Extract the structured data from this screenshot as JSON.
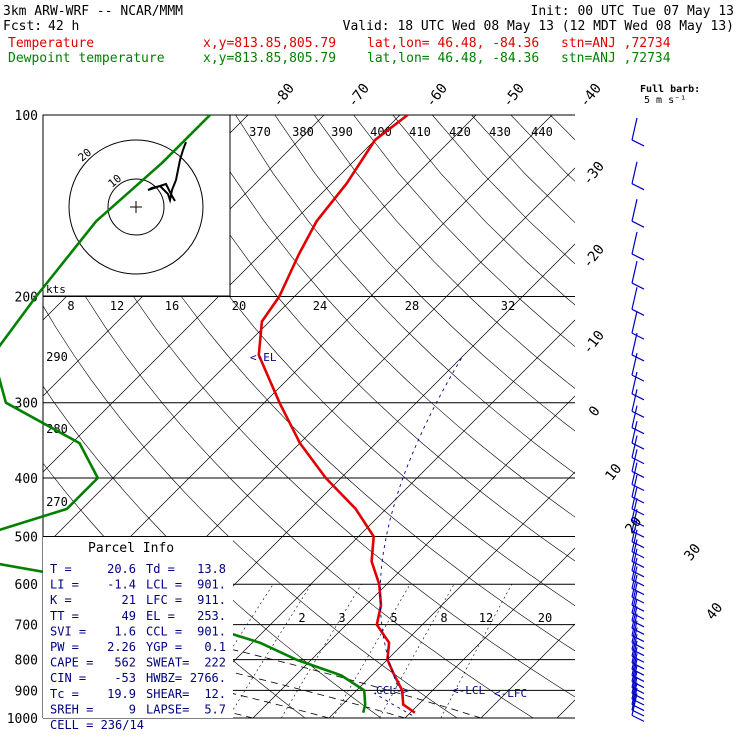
{
  "header": {
    "model": "3km ARW-WRF -- NCAR/MMM",
    "init": "Init: 00 UTC Tue 07 May 13",
    "fcst_label": "Fcst:",
    "fcst_value": "42 h",
    "valid": "Valid: 18 UTC Wed 08 May 13 (12 MDT Wed 08 May 13)",
    "temp_label": "Temperature",
    "dew_label": "Dewpoint temperature",
    "xy": "x,y=813.85,805.79",
    "latlon": "lat,lon= 46.48, -84.36",
    "stn": "stn=ANJ ,72734"
  },
  "colors": {
    "temperature": "#e00000",
    "dewpoint": "#008000",
    "parcel": "#000080",
    "barb": "#0000c0"
  },
  "barb_legend": {
    "line1": "Full barb:",
    "line2": "5 m s⁻¹"
  },
  "hodograph": {
    "units": "kts",
    "ring_labels": [
      "10",
      "20"
    ]
  },
  "chart_data": {
    "type": "line",
    "title": "",
    "ylabel_pressure_levels": [
      100,
      200,
      300,
      400,
      500,
      600,
      700,
      800,
      900,
      1000
    ],
    "isotherm_labels": [
      "-80",
      "-70",
      "-60",
      "-50",
      "-40",
      "-30",
      "-20",
      "-10",
      "0",
      "10",
      "20",
      "30",
      "40"
    ],
    "theta_e_labels": [
      "370",
      "380",
      "390",
      "400",
      "410",
      "420",
      "430",
      "440"
    ],
    "mixing_ratio_labels": [
      "8",
      "12",
      "16",
      "20",
      "24",
      "28",
      "32"
    ],
    "lower_mixing_ratio_labels": [
      "2",
      "3",
      "5",
      "8",
      "12",
      "20"
    ],
    "dry_adiabat_labels": [
      "290",
      "280",
      "270"
    ],
    "series": [
      {
        "name": "Temperature",
        "points": [
          [
            100,
            -59
          ],
          [
            110,
            -60
          ],
          [
            130,
            -58
          ],
          [
            150,
            -57
          ],
          [
            170,
            -55
          ],
          [
            200,
            -52
          ],
          [
            220,
            -51
          ],
          [
            250,
            -47
          ],
          [
            300,
            -38
          ],
          [
            350,
            -30
          ],
          [
            400,
            -22
          ],
          [
            450,
            -14
          ],
          [
            500,
            -8
          ],
          [
            550,
            -5
          ],
          [
            600,
            -1
          ],
          [
            650,
            2
          ],
          [
            700,
            4
          ],
          [
            750,
            8
          ],
          [
            800,
            10
          ],
          [
            850,
            13
          ],
          [
            900,
            16
          ],
          [
            950,
            18
          ],
          [
            980,
            20.6
          ]
        ]
      },
      {
        "name": "Dewpoint temperature",
        "points": [
          [
            100,
            -85
          ],
          [
            120,
            -85
          ],
          [
            150,
            -86
          ],
          [
            200,
            -84
          ],
          [
            250,
            -82
          ],
          [
            300,
            -74
          ],
          [
            350,
            -59
          ],
          [
            400,
            -52
          ],
          [
            450,
            -52
          ],
          [
            500,
            -60
          ],
          [
            550,
            -56
          ],
          [
            600,
            -36
          ],
          [
            650,
            -28
          ],
          [
            700,
            -19
          ],
          [
            750,
            -9
          ],
          [
            800,
            -2
          ],
          [
            850,
            6
          ],
          [
            900,
            11
          ],
          [
            950,
            13
          ],
          [
            980,
            13.8
          ]
        ]
      }
    ],
    "annotations": [
      "<-EL",
      "CCL->",
      "<-LCL",
      "<-LFC"
    ],
    "parcel_info": {
      "title": "Parcel Info",
      "rows": [
        [
          "T  =",
          "20.6",
          "Td =",
          "13.8"
        ],
        [
          "LI =",
          "-1.4",
          "LCL =",
          "901."
        ],
        [
          "K  =",
          "21",
          "LFC =",
          "911."
        ],
        [
          "TT =",
          "49",
          "EL =",
          "253."
        ],
        [
          "SVI =",
          "1.6",
          "CCL =",
          "901."
        ],
        [
          "PW =",
          "2.26",
          "YGP =",
          "0.1"
        ],
        [
          "CAPE =",
          "562",
          "SWEAT=",
          "222"
        ],
        [
          "CIN =",
          "-53",
          "HWBZ=",
          "2766."
        ],
        [
          "Tc =",
          "19.9",
          "SHEAR=",
          "12."
        ],
        [
          "SREH =",
          "9",
          "LAPSE=",
          "5.7"
        ]
      ],
      "cell": "CELL = 236/14"
    }
  }
}
